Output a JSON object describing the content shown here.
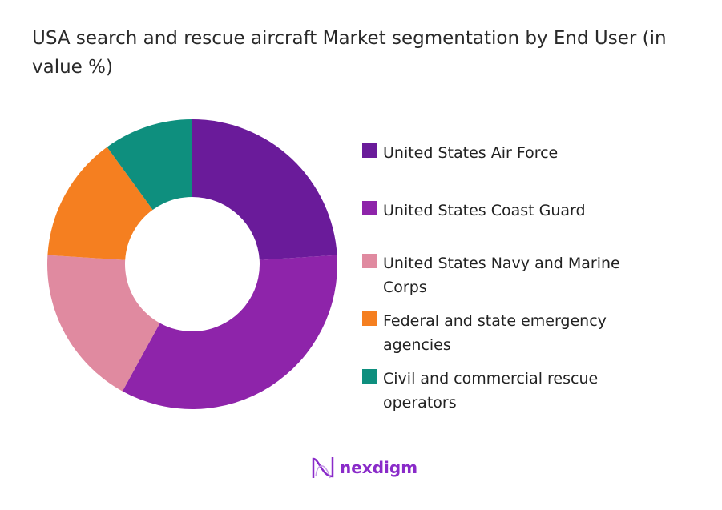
{
  "chart_data": {
    "type": "pie",
    "variant": "donut",
    "title": "USA search and rescue aircraft Market segmentation by End User (in value %)",
    "categories": [
      "United States Air Force",
      "United States Coast Guard",
      "United States Navy and Marine Corps",
      "Federal and state emergency agencies",
      "Civil and commercial rescue operators"
    ],
    "values": [
      24,
      34,
      18,
      14,
      10
    ],
    "colors": [
      "#6a1b9a",
      "#8e24aa",
      "#e08aa0",
      "#f57f20",
      "#0e8f7e"
    ],
    "legend_placement": "right"
  },
  "logo": {
    "text": "nexdigm",
    "color": "#8a2bc9"
  }
}
